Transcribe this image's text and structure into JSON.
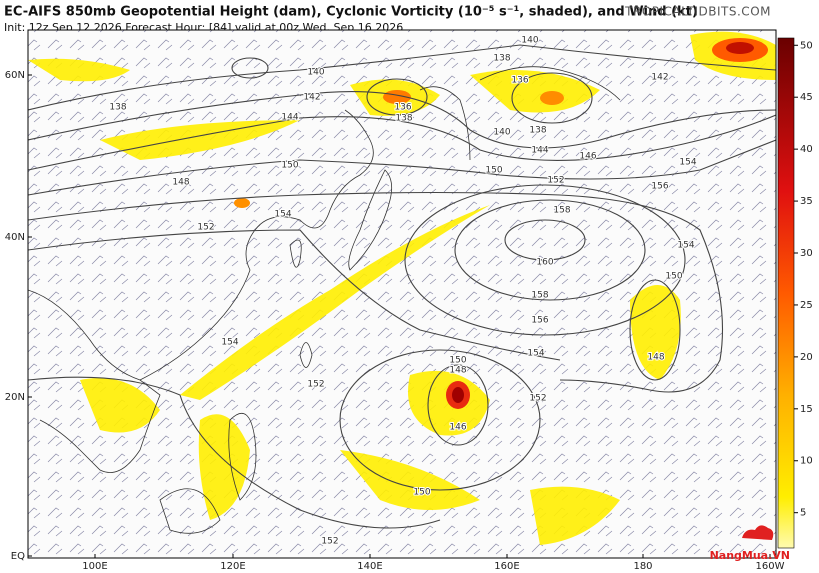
{
  "header": {
    "title": "EC-AIFS 850mb Geopotential Height (dam), Cyclonic Vorticity (10⁻⁵ s⁻¹, shaded), and Wind (kt)",
    "subtitle": "Init: 12z Sep 12 2026   Forecast Hour: [84]   valid at 00z Wed, Sep 16 2026",
    "site": "TROPICALTIDBITS.COM"
  },
  "map": {
    "latitudes": [
      "60N",
      "40N",
      "20N",
      "EQ"
    ],
    "longitudes": [
      "100E",
      "120E",
      "140E",
      "160E",
      "180",
      "160W"
    ],
    "contour_labels": [
      140,
      142,
      144,
      150,
      148,
      152,
      154,
      136,
      138,
      138,
      136,
      140,
      142,
      140,
      138,
      144,
      146,
      150,
      152,
      154,
      156,
      158,
      160,
      158,
      156,
      154,
      152,
      150,
      148,
      146,
      150,
      152,
      154,
      154,
      150,
      148,
      152,
      138
    ]
  },
  "colorbar": {
    "lim": [
      1.6,
      50.7
    ],
    "ticks": [
      5,
      10,
      15,
      20,
      25,
      30,
      35,
      40,
      45,
      50
    ]
  },
  "watermark": "NangMua.VN"
}
